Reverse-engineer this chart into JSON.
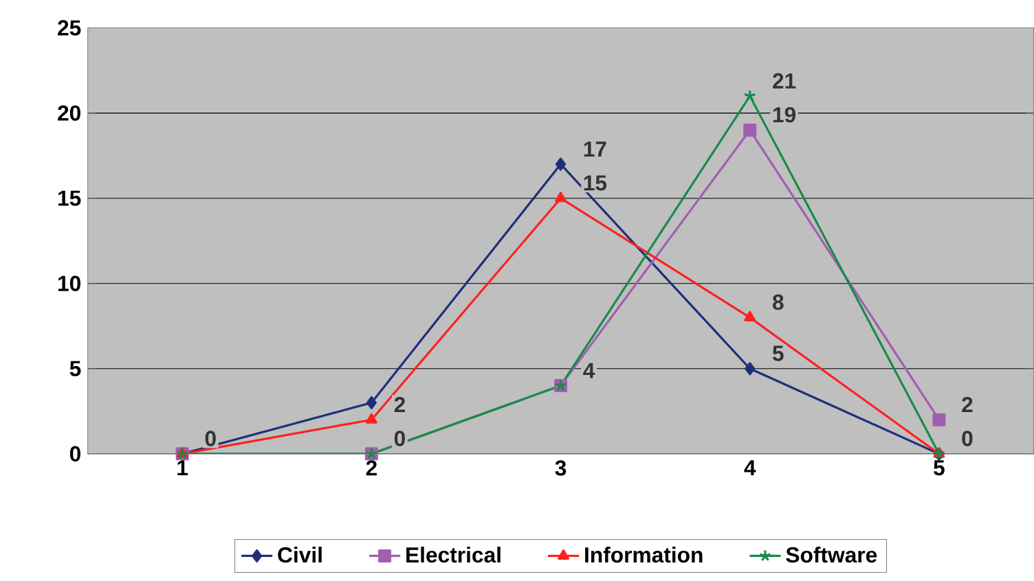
{
  "chart_data": {
    "type": "line",
    "categories": [
      "1",
      "2",
      "3",
      "4",
      "5"
    ],
    "series": [
      {
        "name": "Civil",
        "color": "#1f2f7a",
        "marker": "diamond",
        "values": [
          0,
          3,
          17,
          5,
          0
        ],
        "value_labels": [
          "0",
          null,
          "17",
          "5",
          null
        ]
      },
      {
        "name": "Electrical",
        "color": "#a05fb0",
        "marker": "square",
        "values": [
          0,
          0,
          4,
          19,
          2
        ],
        "value_labels": [
          null,
          null,
          null,
          "19",
          "2"
        ]
      },
      {
        "name": "Information",
        "color": "#ff2020",
        "marker": "triangle",
        "values": [
          0,
          2,
          15,
          8,
          0
        ],
        "value_labels": [
          null,
          "2",
          "15",
          "8",
          "0"
        ]
      },
      {
        "name": "Software",
        "color": "#1a8a4a",
        "marker": "cross",
        "values": [
          0,
          0,
          4,
          21,
          0
        ],
        "value_labels": [
          null,
          "0",
          "4",
          "21",
          null
        ]
      }
    ],
    "ylim": [
      0,
      25
    ],
    "yticks": [
      0,
      5,
      10,
      15,
      20,
      25
    ],
    "grid": "y",
    "legend": "bottom",
    "line_style": "solid"
  }
}
